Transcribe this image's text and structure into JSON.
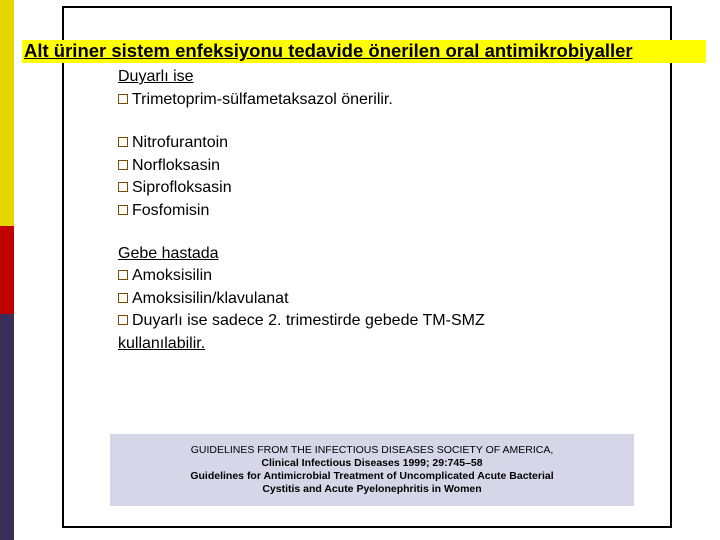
{
  "colors": {
    "background": "#ffffff",
    "text": "#000000",
    "title_highlight": "#ffff00",
    "bullet_border": "#7a4a00",
    "ref_box_bg": "#d6d6e8",
    "frame_border": "#000000",
    "sidebar_yellow": "#e6d600",
    "sidebar_red": "#c00000",
    "sidebar_violet": "#3b2e5a"
  },
  "title": "Alt üriner sistem enfeksiyonu tedavide önerilen oral antimikrobiyaller",
  "section1": {
    "heading": "Duyarlı ise",
    "item1": "Trimetoprim-sülfametaksazol önerilir."
  },
  "section2": {
    "item1": "Nitrofurantoin",
    "item2": "Norfloksasin",
    "item3": "Siprofloksasin",
    "item4": "Fosfomisin"
  },
  "section3": {
    "heading": "Gebe hastada",
    "item1": "Amoksisilin",
    "item2": "Amoksisilin/klavulanat",
    "item3": "Duyarlı ise sadece 2. trimestirde gebede TM-SMZ",
    "note": "kullanılabilir."
  },
  "reference": {
    "line1": "GUIDELINES FROM THE INFECTIOUS DISEASES SOCIETY OF AMERICA,",
    "line2": "Clinical Infectious Diseases 1999; 29:745–58",
    "line3": "Guidelines for Antimicrobial Treatment of Uncomplicated Acute Bacterial",
    "line4": "Cystitis and Acute Pyelonephritis in Women"
  }
}
